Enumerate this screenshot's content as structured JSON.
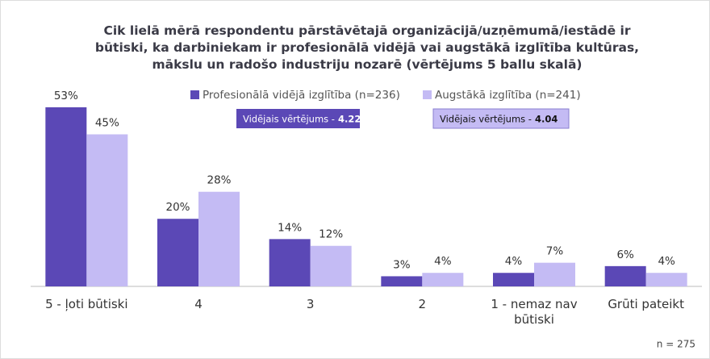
{
  "chart_data": {
    "type": "bar",
    "title": "Cik lielā mērā respondentu pārstāvētajā organizācijā/uzņēmumā/iestādē ir būtiski, ka darbiniekam ir profesionālā vidējā vai augstākā izglītība kultūras, mākslu un radošo industriju nozarē (vērtējums 5 ballu skalā)",
    "categories": [
      "5 - ļoti būtiski",
      "4",
      "3",
      "2",
      "1 - nemaz nav būtiski",
      "Grūti pateikt"
    ],
    "series": [
      {
        "name": "Profesionālā vidējā izglītība (n=236)",
        "color": "#5b48b6",
        "values": [
          53,
          20,
          14,
          3,
          4,
          6
        ],
        "value_labels": [
          "53%",
          "20%",
          "14%",
          "3%",
          "4%",
          "6%"
        ]
      },
      {
        "name": "Augstākā izglītība (n=241)",
        "color": "#c4bbf4",
        "values": [
          45,
          28,
          12,
          4,
          7,
          4
        ],
        "value_labels": [
          "45%",
          "28%",
          "12%",
          "4%",
          "7%",
          "4%"
        ]
      }
    ],
    "annotations": [
      {
        "label": "Vidējais vērtējums -",
        "value": 4.22
      },
      {
        "label": "Vidējais vērtējums -",
        "value": 4.04
      }
    ],
    "note": "n = 275",
    "ylim": [
      0,
      53
    ]
  }
}
